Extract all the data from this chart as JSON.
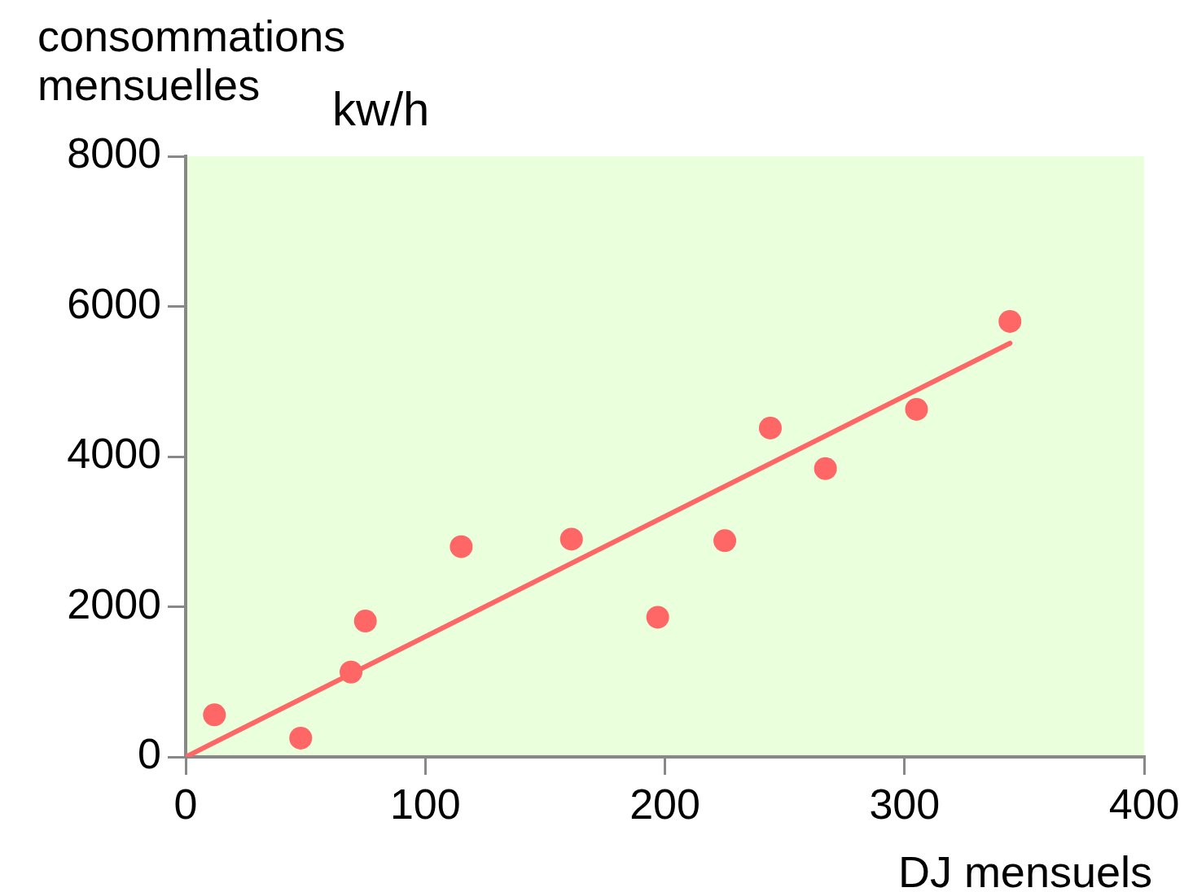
{
  "chart_data": {
    "type": "scatter",
    "ylabel": "consommations mensuelles",
    "xlabel": "DJ mensuels",
    "annotations": [
      "kw/h"
    ],
    "xlim": [
      0,
      400
    ],
    "xticks": [
      0,
      100,
      200,
      300,
      400
    ],
    "ylim": [
      0,
      8000
    ],
    "yticks": [
      0,
      2000,
      4000,
      6000,
      8000
    ],
    "grid": false,
    "legend": false,
    "marker": "circle",
    "series": [
      {
        "type": "scatter",
        "color": "#ff6666",
        "x": [
          12,
          48,
          69,
          75,
          115,
          161,
          197,
          225,
          244,
          267,
          305,
          344
        ],
        "values": [
          560,
          250,
          1130,
          1810,
          2800,
          2900,
          1860,
          2880,
          4380,
          3840,
          4630,
          5800
        ]
      },
      {
        "type": "line",
        "color": "#ff6666",
        "marker": "none",
        "line_style": "solid",
        "x": [
          0,
          344
        ],
        "values": [
          0,
          5510
        ]
      }
    ]
  }
}
